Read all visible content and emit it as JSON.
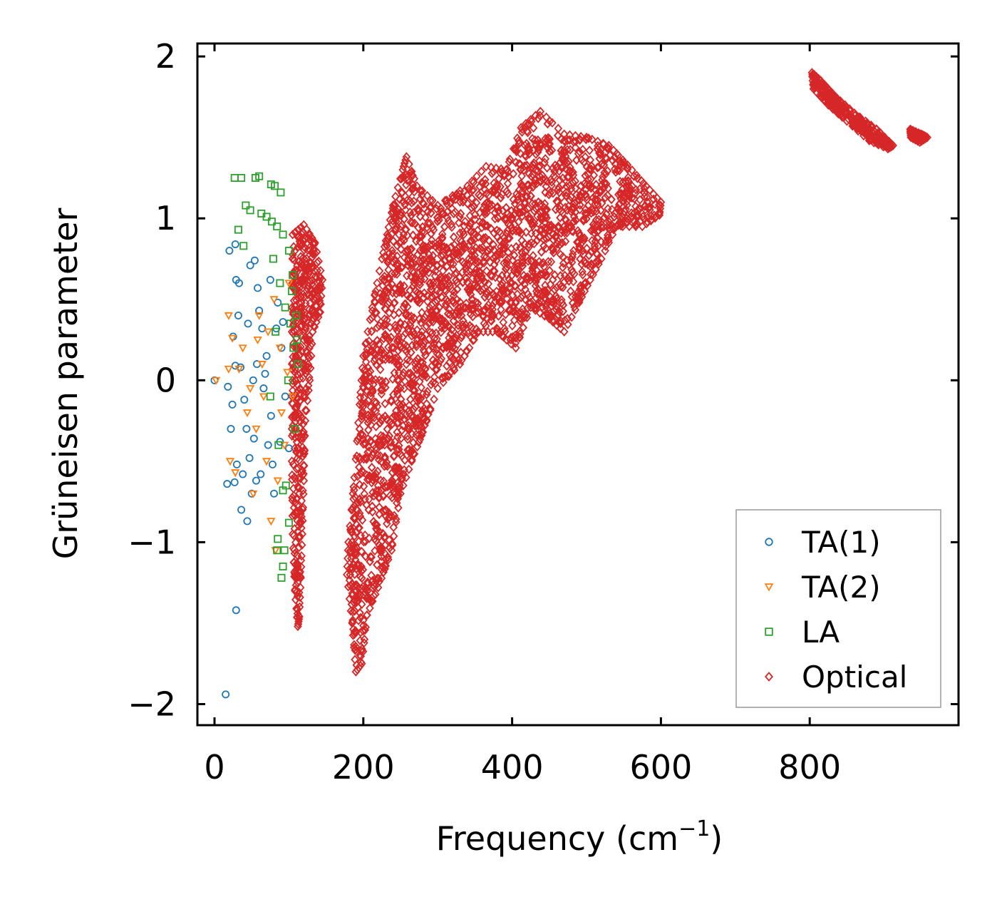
{
  "chart_data": {
    "type": "scatter",
    "title": "",
    "xlabel": "Frequency (cm",
    "xlabel_sup": "−1",
    "xlabel_close": ")",
    "ylabel": "Grüneisen parameter",
    "xlim": [
      -23,
      1000
    ],
    "ylim": [
      -2.13,
      2.08
    ],
    "x_ticks": [
      0,
      200,
      400,
      600,
      800
    ],
    "x_tick_labels": [
      "0",
      "200",
      "400",
      "600",
      "800"
    ],
    "y_ticks": [
      2,
      1,
      0,
      -1,
      -2
    ],
    "y_tick_labels": [
      "2",
      "1",
      "0",
      "−1",
      "−2"
    ],
    "legend_position": "lower-right",
    "series": [
      {
        "name": "TA(1)",
        "marker": "circle",
        "color": "#1f77b4",
        "points": [
          [
            0,
            0
          ],
          [
            15,
            -1.94
          ],
          [
            29,
            -1.42
          ],
          [
            17,
            -0.64
          ],
          [
            20,
            0.8
          ],
          [
            28,
            0.84
          ],
          [
            29,
            0.62
          ],
          [
            33,
            0.6
          ],
          [
            32,
            0.4
          ],
          [
            25,
            0.27
          ],
          [
            28,
            0.09
          ],
          [
            35,
            0.08
          ],
          [
            18,
            -0.04
          ],
          [
            24,
            -0.15
          ],
          [
            22,
            -0.3
          ],
          [
            30,
            -0.52
          ],
          [
            27,
            -0.63
          ],
          [
            38,
            -0.58
          ],
          [
            44,
            -0.87
          ],
          [
            36,
            -0.8
          ],
          [
            50,
            -0.7
          ],
          [
            53,
            -0.36
          ],
          [
            40,
            -0.12
          ],
          [
            45,
            0.35
          ],
          [
            48,
            0.71
          ],
          [
            54,
            0.74
          ],
          [
            58,
            0.57
          ],
          [
            60,
            0.43
          ],
          [
            64,
            0.32
          ],
          [
            70,
            0.15
          ],
          [
            66,
            -0.05
          ],
          [
            72,
            -0.4
          ],
          [
            78,
            -0.52
          ],
          [
            80,
            -0.7
          ],
          [
            75,
            0.62
          ],
          [
            85,
            0.48
          ],
          [
            90,
            0.2
          ],
          [
            95,
            -0.1
          ],
          [
            88,
            -0.38
          ],
          [
            100,
            -0.42
          ],
          [
            62,
            -0.58
          ],
          [
            56,
            -0.62
          ],
          [
            47,
            -0.48
          ],
          [
            43,
            -0.3
          ],
          [
            52,
            0.0
          ],
          [
            57,
            0.1
          ],
          [
            68,
            0.04
          ],
          [
            76,
            -0.22
          ],
          [
            83,
            0.32
          ],
          [
            92,
            0.36
          ]
        ]
      },
      {
        "name": "TA(2)",
        "marker": "triangle-down",
        "color": "#ff7f0e",
        "points": [
          [
            2,
            0
          ],
          [
            19,
            0.4
          ],
          [
            24,
            0.26
          ],
          [
            19,
            0.07
          ],
          [
            21,
            -0.5
          ],
          [
            28,
            -0.57
          ],
          [
            33,
            0.07
          ],
          [
            38,
            0.2
          ],
          [
            44,
            -0.2
          ],
          [
            52,
            -0.7
          ],
          [
            56,
            -0.3
          ],
          [
            60,
            0.4
          ],
          [
            64,
            0.1
          ],
          [
            70,
            -0.5
          ],
          [
            76,
            -0.87
          ],
          [
            82,
            -1.05
          ],
          [
            88,
            0.2
          ],
          [
            94,
            -0.4
          ],
          [
            100,
            0.6
          ],
          [
            105,
            -0.1
          ],
          [
            80,
            0.5
          ],
          [
            72,
            0.3
          ],
          [
            66,
            -0.1
          ],
          [
            58,
            0.25
          ],
          [
            48,
            -0.05
          ],
          [
            85,
            -0.62
          ],
          [
            90,
            -0.2
          ],
          [
            98,
            0.05
          ]
        ]
      },
      {
        "name": "LA",
        "marker": "square",
        "color": "#2ca02c",
        "points": [
          [
            27,
            1.25
          ],
          [
            36,
            1.25
          ],
          [
            55,
            1.25
          ],
          [
            60,
            1.26
          ],
          [
            76,
            1.21
          ],
          [
            81,
            1.2
          ],
          [
            89,
            1.16
          ],
          [
            32,
            0.93
          ],
          [
            39,
            0.83
          ],
          [
            42,
            1.08
          ],
          [
            48,
            1.05
          ],
          [
            63,
            1.03
          ],
          [
            70,
            1.01
          ],
          [
            77,
            0.98
          ],
          [
            84,
            0.95
          ],
          [
            92,
            0.9
          ],
          [
            100,
            0.8
          ],
          [
            105,
            0.65
          ],
          [
            110,
            0.4
          ],
          [
            106,
            0.2
          ],
          [
            112,
            0.1
          ],
          [
            96,
            -0.65
          ],
          [
            92,
            -0.68
          ],
          [
            85,
            -0.98
          ],
          [
            84,
            -1.05
          ],
          [
            94,
            -1.05
          ],
          [
            92,
            -1.15
          ],
          [
            90,
            -1.22
          ],
          [
            100,
            -0.88
          ],
          [
            75,
            -0.1
          ],
          [
            82,
            0.3
          ],
          [
            88,
            0.6
          ],
          [
            95,
            0.45
          ],
          [
            102,
            0.35
          ],
          [
            108,
            -0.3
          ],
          [
            99,
            0.0
          ],
          [
            86,
            -0.4
          ],
          [
            79,
            0.75
          ],
          [
            104,
            0.55
          ],
          [
            111,
            0.25
          ]
        ]
      },
      {
        "name": "Optical",
        "marker": "diamond",
        "color": "#d62728",
        "clouds": [
          {
            "poly": [
              [
                105,
                0.9
              ],
              [
                120,
                0.96
              ],
              [
                135,
                0.85
              ],
              [
                145,
                0.62
              ],
              [
                142,
                0.42
              ],
              [
                132,
                0.3
              ],
              [
                128,
                0.0
              ],
              [
                122,
                -0.25
              ],
              [
                120,
                -0.62
              ],
              [
                118,
                -0.95
              ],
              [
                116,
                -1.22
              ],
              [
                114,
                -1.46
              ],
              [
                112,
                -1.52
              ],
              [
                108,
                -1.3
              ],
              [
                105,
                -0.95
              ],
              [
                104,
                -0.5
              ],
              [
                104,
                0.3
              ]
            ],
            "n": 420
          },
          {
            "poly": [
              [
                180,
                -1.0
              ],
              [
                188,
                -0.6
              ],
              [
                195,
                -0.15
              ],
              [
                200,
                0.15
              ],
              [
                212,
                0.45
              ],
              [
                225,
                0.75
              ],
              [
                232,
                0.9
              ],
              [
                240,
                1.08
              ],
              [
                253,
                1.3
              ],
              [
                258,
                1.38
              ],
              [
                272,
                1.2
              ],
              [
                300,
                1.08
              ],
              [
                340,
                1.2
              ],
              [
                365,
                1.32
              ],
              [
                392,
                1.3
              ],
              [
                412,
                1.56
              ],
              [
                438,
                1.66
              ],
              [
                470,
                1.52
              ],
              [
                500,
                1.5
              ],
              [
                530,
                1.45
              ],
              [
                555,
                1.33
              ],
              [
                580,
                1.2
              ],
              [
                600,
                1.1
              ],
              [
                598,
                1.02
              ],
              [
                575,
                0.95
              ],
              [
                540,
                0.95
              ],
              [
                520,
                0.75
              ],
              [
                505,
                0.62
              ],
              [
                490,
                0.48
              ],
              [
                470,
                0.3
              ],
              [
                450,
                0.38
              ],
              [
                425,
                0.45
              ],
              [
                405,
                0.2
              ],
              [
                380,
                0.3
              ],
              [
                355,
                0.3
              ],
              [
                330,
                0.1
              ],
              [
                300,
                -0.05
              ],
              [
                280,
                -0.32
              ],
              [
                265,
                -0.5
              ],
              [
                250,
                -0.7
              ],
              [
                238,
                -1.05
              ],
              [
                220,
                -1.28
              ],
              [
                205,
                -1.45
              ],
              [
                198,
                -1.75
              ],
              [
                190,
                -1.8
              ],
              [
                185,
                -1.5
              ],
              [
                178,
                -1.2
              ]
            ],
            "n": 3200
          },
          {
            "poly": [
              [
                803,
                1.9
              ],
              [
                815,
                1.85
              ],
              [
                835,
                1.75
              ],
              [
                860,
                1.65
              ],
              [
                890,
                1.55
              ],
              [
                912,
                1.45
              ],
              [
                905,
                1.43
              ],
              [
                880,
                1.48
              ],
              [
                850,
                1.6
              ],
              [
                825,
                1.7
              ],
              [
                805,
                1.8
              ]
            ],
            "n": 260
          },
          {
            "poly": [
              [
                935,
                1.55
              ],
              [
                950,
                1.52
              ],
              [
                958,
                1.5
              ],
              [
                948,
                1.47
              ],
              [
                936,
                1.5
              ]
            ],
            "n": 60
          }
        ]
      }
    ]
  }
}
